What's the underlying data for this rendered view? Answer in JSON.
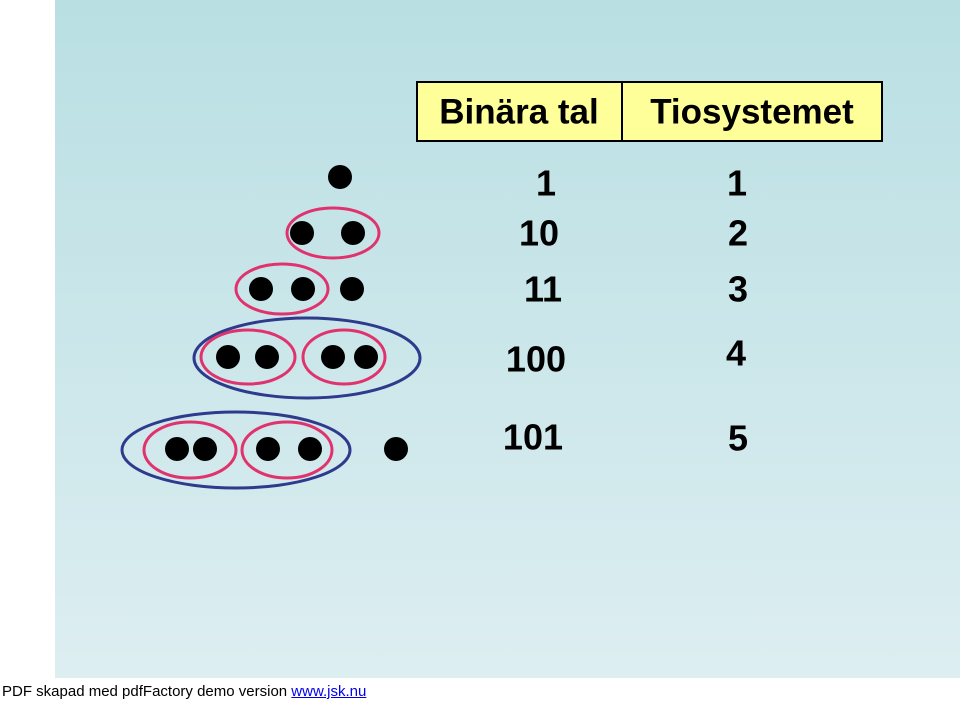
{
  "header": {
    "left": "Binära tal",
    "right": "Tiosystemet"
  },
  "rows": [
    {
      "binary": "1",
      "decimal": "1"
    },
    {
      "binary": "10",
      "decimal": "2"
    },
    {
      "binary": "11",
      "decimal": "3"
    },
    {
      "binary": "100",
      "decimal": "4"
    },
    {
      "binary": "101",
      "decimal": "5"
    }
  ],
  "footer": {
    "text": "PDF skapad med pdfFactory demo version",
    "link": "www.jsk.nu"
  }
}
